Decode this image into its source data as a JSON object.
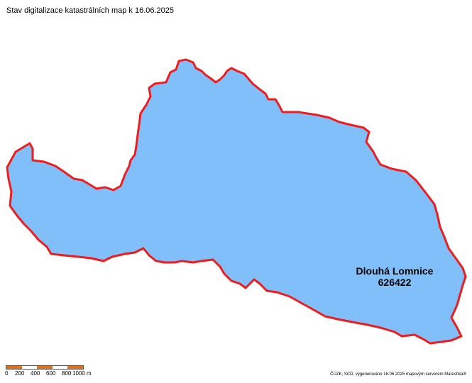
{
  "title": "Stav digitalizace katastrálních map k 16.06.2025",
  "colors": {
    "parcel_fill": "#80bffa",
    "boundary": "#ee1c1c",
    "scale_dark": "#d9731f",
    "scale_light": "#ffffff"
  },
  "area": {
    "name": "Dlouhá Lomnice",
    "code": "626422"
  },
  "scale": {
    "labels": [
      "0",
      "200",
      "400",
      "600",
      "800",
      "1000 m"
    ]
  },
  "credit": "ČÚZK, SCD, vygenerováno 16.06.2025 mapovým serverem Marushka®"
}
